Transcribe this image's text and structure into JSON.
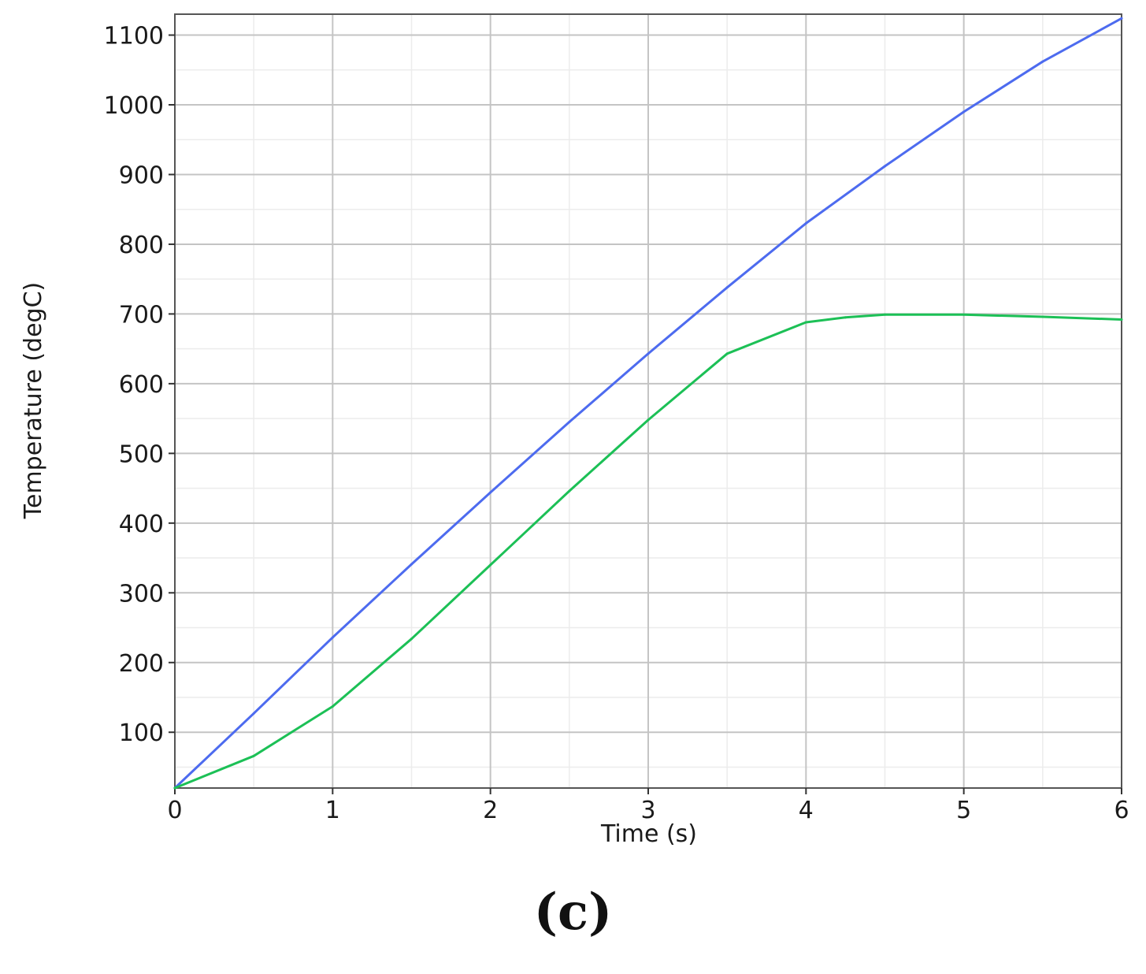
{
  "panel_label": "(c)",
  "chart_data": {
    "type": "line",
    "title": "",
    "xlabel": "Time (s)",
    "ylabel": "Temperature (degC)",
    "xlim": [
      0,
      6
    ],
    "ylim": [
      20,
      1130
    ],
    "xticks": [
      0,
      1,
      2,
      3,
      4,
      5,
      6
    ],
    "yticks": [
      100,
      200,
      300,
      400,
      500,
      600,
      700,
      800,
      900,
      1000,
      1100
    ],
    "grid": true,
    "legend": "none",
    "series": [
      {
        "color": "#4d6bef",
        "x": [
          0,
          0.5,
          1,
          1.5,
          2,
          2.5,
          3,
          3.5,
          4,
          4.5,
          5,
          5.5,
          6
        ],
        "y": [
          20,
          127,
          236,
          341,
          444,
          545,
          643,
          738,
          830,
          912,
          990,
          1062,
          1124
        ]
      },
      {
        "color": "#1cc056",
        "x": [
          0,
          0.5,
          1,
          1.5,
          2,
          2.5,
          3,
          3.5,
          4,
          4.25,
          4.5,
          5,
          5.5,
          6
        ],
        "y": [
          20,
          66,
          137,
          234,
          340,
          446,
          548,
          643,
          688,
          695,
          699,
          699,
          696,
          692
        ]
      }
    ]
  }
}
